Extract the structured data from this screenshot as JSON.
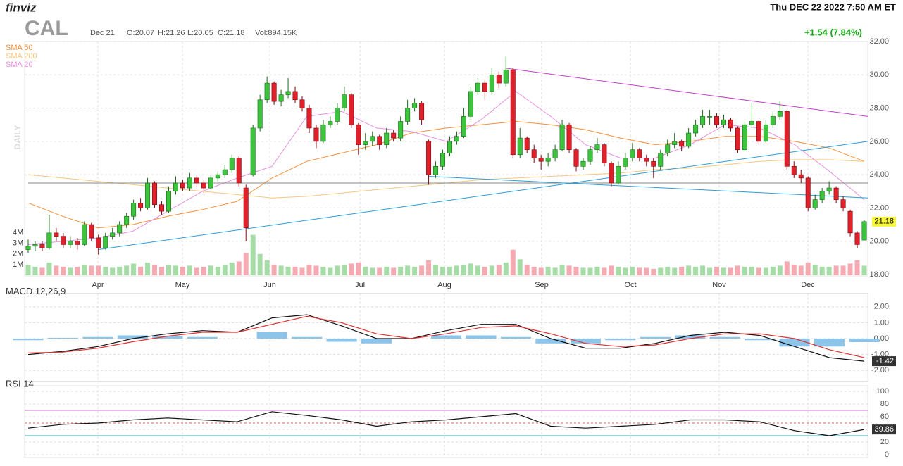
{
  "header": {
    "logo": "finviz",
    "ticker": "CAL",
    "date": "Dec 21",
    "open": "O:20.07",
    "high": "H:21.26",
    "low": "L:20.05",
    "close": "C:21.18",
    "volume": "Vol:894.15K",
    "timestamp": "Thu DEC 22 2022 7:50 AM ET",
    "change": "+1.54 (7.84%)",
    "period": "DAILY"
  },
  "chart_data": [
    {
      "type": "candlestick",
      "months": [
        "Apr",
        "May",
        "Jun",
        "Jul",
        "Aug",
        "Sep",
        "Oct",
        "Nov",
        "Dec"
      ],
      "ylim": [
        18,
        32
      ],
      "yticks": [
        {
          "value": 18,
          "label": "18.00"
        },
        {
          "value": 20,
          "label": "20.00"
        },
        {
          "value": 22,
          "label": "22.00"
        },
        {
          "value": 24,
          "label": "24.00"
        },
        {
          "value": 26,
          "label": "26.00"
        },
        {
          "value": 28,
          "label": "28.00"
        },
        {
          "value": 30,
          "label": "30.00"
        },
        {
          "value": 32,
          "label": "32.00"
        }
      ],
      "grid": true,
      "up_color": "#3cc43c",
      "down_color": "#e0202a",
      "candles": [
        [
          19.5,
          20.1,
          19.3,
          19.7
        ],
        [
          19.7,
          20.0,
          19.4,
          19.8
        ],
        [
          19.8,
          20.0,
          19.4,
          19.6
        ],
        [
          19.6,
          21.6,
          19.5,
          20.5
        ],
        [
          20.5,
          20.8,
          20.0,
          20.3
        ],
        [
          20.3,
          20.5,
          19.6,
          19.8
        ],
        [
          19.8,
          20.3,
          19.6,
          20.0
        ],
        [
          20.0,
          20.2,
          19.5,
          19.8
        ],
        [
          19.8,
          21.2,
          19.7,
          21.0
        ],
        [
          21.0,
          21.1,
          20.0,
          20.2
        ],
        [
          20.2,
          20.4,
          19.2,
          19.6
        ],
        [
          19.6,
          20.5,
          19.5,
          20.3
        ],
        [
          20.3,
          20.8,
          20.1,
          20.5
        ],
        [
          20.5,
          21.2,
          20.3,
          21.0
        ],
        [
          21.0,
          21.7,
          20.8,
          21.5
        ],
        [
          21.5,
          22.5,
          21.3,
          22.3
        ],
        [
          22.3,
          22.6,
          21.8,
          22.0
        ],
        [
          22.0,
          23.8,
          21.9,
          23.5
        ],
        [
          23.5,
          23.6,
          22.0,
          22.2
        ],
        [
          22.2,
          22.4,
          21.6,
          21.8
        ],
        [
          21.8,
          23.3,
          21.7,
          23.0
        ],
        [
          23.0,
          23.9,
          22.8,
          23.5
        ],
        [
          23.5,
          23.7,
          23.0,
          23.2
        ],
        [
          23.2,
          24.1,
          23.0,
          23.8
        ],
        [
          23.8,
          24.0,
          23.3,
          23.5
        ],
        [
          23.5,
          23.7,
          22.9,
          23.2
        ],
        [
          23.2,
          24.0,
          23.1,
          23.8
        ],
        [
          23.8,
          24.2,
          23.6,
          24.0
        ],
        [
          24.0,
          24.6,
          23.8,
          24.3
        ],
        [
          24.3,
          25.2,
          24.1,
          25.0
        ],
        [
          25.0,
          25.1,
          23.3,
          23.5
        ],
        [
          23.2,
          23.4,
          20.0,
          20.8
        ],
        [
          24.0,
          27.0,
          23.9,
          26.8
        ],
        [
          26.8,
          28.8,
          26.6,
          28.5
        ],
        [
          28.5,
          29.9,
          28.3,
          29.5
        ],
        [
          29.5,
          29.6,
          28.2,
          28.4
        ],
        [
          28.4,
          29.1,
          28.1,
          28.8
        ],
        [
          28.8,
          29.8,
          28.6,
          29.0
        ],
        [
          29.0,
          29.3,
          28.3,
          28.5
        ],
        [
          28.5,
          28.7,
          27.8,
          28.0
        ],
        [
          28.0,
          28.2,
          26.5,
          26.8
        ],
        [
          26.8,
          27.0,
          25.6,
          26.0
        ],
        [
          26.0,
          27.3,
          25.9,
          27.0
        ],
        [
          27.0,
          27.5,
          26.8,
          27.2
        ],
        [
          27.2,
          28.3,
          27.0,
          28.0
        ],
        [
          28.0,
          29.3,
          27.8,
          28.8
        ],
        [
          28.8,
          28.9,
          26.8,
          27.0
        ],
        [
          27.0,
          27.1,
          25.2,
          25.8
        ],
        [
          25.8,
          26.5,
          25.5,
          26.0
        ],
        [
          26.0,
          26.6,
          25.7,
          26.3
        ],
        [
          26.3,
          26.4,
          25.5,
          25.8
        ],
        [
          25.8,
          26.8,
          25.6,
          26.5
        ],
        [
          26.5,
          26.7,
          26.0,
          26.2
        ],
        [
          26.2,
          27.5,
          26.0,
          27.2
        ],
        [
          27.2,
          28.5,
          27.0,
          28.0
        ],
        [
          28.0,
          28.6,
          27.8,
          28.3
        ],
        [
          28.3,
          28.4,
          27.0,
          27.3
        ],
        [
          26.0,
          26.1,
          23.4,
          24.0
        ],
        [
          24.0,
          24.8,
          23.8,
          24.5
        ],
        [
          24.5,
          25.5,
          24.3,
          25.3
        ],
        [
          25.3,
          26.3,
          25.1,
          26.0
        ],
        [
          26.0,
          26.6,
          25.8,
          26.3
        ],
        [
          26.3,
          28.0,
          26.2,
          27.5
        ],
        [
          27.5,
          29.3,
          27.3,
          29.0
        ],
        [
          29.0,
          29.8,
          28.8,
          29.5
        ],
        [
          29.5,
          29.7,
          28.5,
          29.0
        ],
        [
          29.0,
          30.4,
          28.8,
          30.0
        ],
        [
          30.0,
          30.2,
          29.2,
          29.5
        ],
        [
          29.5,
          31.1,
          29.3,
          30.3
        ],
        [
          30.3,
          30.4,
          25.0,
          25.2
        ],
        [
          25.2,
          26.8,
          25.0,
          26.2
        ],
        [
          26.2,
          26.3,
          25.3,
          25.5
        ],
        [
          25.5,
          25.8,
          24.7,
          25.0
        ],
        [
          25.0,
          25.2,
          24.3,
          24.8
        ],
        [
          24.8,
          25.3,
          24.5,
          25.0
        ],
        [
          25.0,
          25.8,
          24.8,
          25.5
        ],
        [
          25.5,
          27.3,
          25.4,
          27.0
        ],
        [
          27.0,
          27.1,
          25.3,
          25.5
        ],
        [
          25.5,
          25.6,
          24.2,
          24.5
        ],
        [
          24.5,
          25.0,
          24.3,
          24.8
        ],
        [
          24.8,
          25.7,
          24.6,
          25.5
        ],
        [
          25.5,
          26.2,
          25.3,
          25.8
        ],
        [
          25.8,
          25.9,
          24.5,
          24.7
        ],
        [
          24.7,
          24.8,
          23.3,
          23.5
        ],
        [
          23.5,
          24.8,
          23.4,
          24.5
        ],
        [
          24.5,
          25.3,
          24.3,
          25.0
        ],
        [
          25.0,
          25.9,
          24.8,
          25.5
        ],
        [
          25.5,
          25.6,
          24.8,
          25.0
        ],
        [
          25.0,
          25.2,
          24.5,
          24.8
        ],
        [
          24.8,
          25.0,
          23.8,
          24.5
        ],
        [
          24.5,
          25.5,
          24.3,
          25.3
        ],
        [
          25.3,
          26.1,
          25.1,
          25.8
        ],
        [
          25.8,
          26.5,
          25.6,
          26.0
        ],
        [
          26.0,
          26.1,
          25.4,
          25.7
        ],
        [
          25.7,
          26.8,
          25.6,
          26.5
        ],
        [
          26.5,
          27.3,
          26.3,
          27.0
        ],
        [
          27.0,
          27.9,
          26.8,
          27.5
        ],
        [
          27.5,
          27.9,
          27.0,
          27.5
        ],
        [
          27.5,
          27.7,
          26.8,
          27.0
        ],
        [
          27.0,
          27.6,
          26.8,
          27.3
        ],
        [
          27.3,
          27.4,
          26.6,
          26.8
        ],
        [
          26.8,
          26.9,
          25.3,
          25.5
        ],
        [
          25.5,
          27.2,
          25.4,
          27.0
        ],
        [
          27.0,
          28.3,
          26.8,
          27.2
        ],
        [
          27.2,
          27.3,
          25.8,
          26.0
        ],
        [
          26.0,
          27.3,
          25.9,
          27.0
        ],
        [
          27.0,
          27.8,
          26.8,
          27.5
        ],
        [
          27.5,
          28.4,
          27.3,
          27.8
        ],
        [
          27.8,
          27.9,
          24.3,
          24.5
        ],
        [
          24.5,
          24.8,
          23.8,
          24.0
        ],
        [
          24.0,
          24.3,
          23.5,
          23.8
        ],
        [
          23.8,
          23.9,
          21.8,
          22.0
        ],
        [
          22.0,
          22.8,
          21.9,
          22.5
        ],
        [
          22.5,
          23.2,
          22.3,
          23.0
        ],
        [
          23.0,
          23.6,
          22.8,
          23.2
        ],
        [
          23.2,
          23.3,
          22.3,
          22.5
        ],
        [
          22.5,
          22.7,
          21.8,
          22.0
        ],
        [
          21.8,
          21.9,
          20.3,
          20.5
        ],
        [
          20.5,
          20.6,
          19.6,
          19.8
        ],
        [
          20.07,
          21.26,
          20.05,
          21.18
        ]
      ],
      "volume": {
        "ylim": [
          0,
          22
        ],
        "yticks": [
          {
            "value": 1,
            "label": "1M"
          },
          {
            "value": 2,
            "label": "2M"
          },
          {
            "value": 3,
            "label": "3M"
          },
          {
            "value": 4,
            "label": "4M"
          }
        ],
        "up_color": "#a6dca6",
        "down_color": "#f5aab2",
        "values": [
          1.0,
          0.8,
          0.7,
          1.2,
          0.9,
          0.8,
          0.7,
          0.8,
          1.0,
          0.9,
          0.9,
          0.8,
          0.7,
          0.8,
          0.9,
          1.1,
          0.8,
          1.2,
          1.0,
          0.8,
          1.0,
          0.9,
          0.8,
          0.9,
          0.7,
          0.8,
          0.9,
          0.8,
          1.0,
          1.2,
          1.3,
          2.1,
          3.8,
          2.0,
          1.4,
          1.0,
          0.9,
          0.8,
          0.8,
          0.7,
          1.0,
          0.9,
          0.8,
          0.7,
          0.9,
          1.0,
          1.1,
          1.2,
          0.8,
          0.7,
          0.7,
          0.8,
          0.7,
          0.8,
          0.9,
          0.8,
          0.9,
          1.4,
          1.0,
          0.8,
          0.8,
          0.9,
          1.0,
          1.1,
          0.9,
          0.8,
          0.9,
          1.0,
          1.2,
          2.4,
          1.5,
          1.0,
          0.8,
          0.7,
          0.8,
          0.7,
          1.0,
          0.9,
          0.8,
          0.7,
          0.7,
          0.8,
          0.7,
          0.9,
          0.8,
          0.7,
          0.8,
          0.7,
          0.7,
          0.6,
          0.7,
          0.8,
          0.7,
          0.8,
          0.9,
          0.8,
          0.9,
          0.7,
          0.8,
          0.7,
          0.7,
          0.9,
          0.8,
          0.8,
          0.7,
          0.7,
          0.8,
          0.9,
          1.3,
          1.0,
          0.9,
          1.2,
          1.0,
          0.8,
          0.8,
          0.9,
          0.9,
          1.1,
          1.4,
          0.89415
        ]
      },
      "series": [
        {
          "name": "SMA 50",
          "color": "#f5903d",
          "values": [
            22.3,
            21.5,
            20.8,
            21.0,
            21.5,
            21.9,
            22.4,
            23.8,
            24.8,
            25.3,
            25.8,
            26.5,
            26.8,
            27.0,
            27.2,
            27.0,
            26.7,
            26.2,
            25.8,
            26.0,
            26.3,
            26.3,
            26.0,
            25.6,
            24.8
          ]
        },
        {
          "name": "SMA 200",
          "color": "#f5c77e",
          "values": [
            24.0,
            23.8,
            23.6,
            23.4,
            23.2,
            23.0,
            22.8,
            22.6,
            22.7,
            22.9,
            23.1,
            23.3,
            23.5,
            23.7,
            23.8,
            23.9,
            24.0,
            24.1,
            24.3,
            24.4,
            24.6,
            24.8,
            24.9,
            24.9,
            24.8
          ]
        },
        {
          "name": "SMA 20",
          "color": "#e890e0",
          "values": [
            19.8,
            20.0,
            20.2,
            20.6,
            21.8,
            23.0,
            23.8,
            24.5,
            27.5,
            27.8,
            26.8,
            26.6,
            26.0,
            27.3,
            29.0,
            27.5,
            25.8,
            25.0,
            25.0,
            25.8,
            27.0,
            26.8,
            25.8,
            24.2,
            22.5
          ]
        }
      ],
      "lines": [
        {
          "color": "#888888",
          "from": [
            0,
            23.5
          ],
          "to": [
            119,
            23.5
          ]
        },
        {
          "color": "#c040c8",
          "from": [
            68,
            30.4
          ],
          "to": [
            119,
            27.5
          ]
        },
        {
          "color": "#2a9fd6",
          "from": [
            10,
            19.5
          ],
          "to": [
            119,
            26.0
          ]
        },
        {
          "color": "#2a9fd6",
          "from": [
            57,
            23.9
          ],
          "to": [
            119,
            22.6
          ]
        }
      ]
    },
    {
      "type": "line",
      "title": "MACD 12,26,9",
      "ylim": [
        -2.5,
        2.5
      ],
      "yticks": [
        {
          "value": -2,
          "label": "-2.00"
        },
        {
          "value": -1,
          "label": "-1.00"
        },
        {
          "value": 0,
          "label": "0.00"
        },
        {
          "value": 1,
          "label": "1.00"
        },
        {
          "value": 2,
          "label": "2.00"
        }
      ],
      "histogram": {
        "color": "#8cc4ea",
        "values": [
          -0.1,
          0.05,
          0.1,
          0.2,
          0.15,
          0.1,
          0.0,
          0.4,
          0.1,
          -0.2,
          -0.3,
          0.0,
          0.2,
          0.2,
          0.1,
          -0.3,
          -0.3,
          -0.1,
          0.1,
          0.2,
          0.1,
          -0.1,
          -0.5,
          -0.5,
          -0.22
        ]
      },
      "series": [
        {
          "name": "MACD",
          "color": "#111111",
          "values": [
            -1.0,
            -0.8,
            -0.5,
            0.0,
            0.3,
            0.5,
            0.4,
            1.3,
            1.5,
            0.8,
            0.0,
            0.0,
            0.5,
            0.9,
            0.9,
            0.0,
            -0.6,
            -0.6,
            -0.3,
            0.2,
            0.4,
            0.2,
            -0.5,
            -1.2,
            -1.42
          ]
        },
        {
          "name": "Signal",
          "color": "#e03030",
          "values": [
            -0.9,
            -0.85,
            -0.6,
            -0.2,
            0.15,
            0.4,
            0.4,
            0.9,
            1.4,
            1.0,
            0.3,
            0.0,
            0.3,
            0.7,
            0.8,
            0.3,
            -0.3,
            -0.5,
            -0.4,
            0.0,
            0.3,
            0.3,
            0.0,
            -0.7,
            -1.2
          ]
        }
      ]
    },
    {
      "type": "line",
      "title": "RSI 14",
      "ylim": [
        0,
        100
      ],
      "yticks": [
        0,
        20,
        40,
        60,
        80,
        100
      ],
      "levels": [
        {
          "value": 70,
          "color": "#d070d0"
        },
        {
          "value": 50,
          "color": "#e06060"
        },
        {
          "value": 30,
          "color": "#40b0c0"
        }
      ],
      "series": [
        {
          "name": "RSI",
          "color": "#111111",
          "values": [
            42,
            48,
            50,
            55,
            58,
            55,
            52,
            68,
            62,
            55,
            45,
            52,
            55,
            60,
            65,
            45,
            42,
            45,
            48,
            55,
            55,
            52,
            38,
            30,
            39.86
          ]
        }
      ]
    }
  ]
}
